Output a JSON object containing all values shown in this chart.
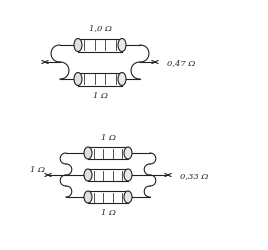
{
  "bg_color": "#ffffff",
  "line_color": "#222222",
  "text_color": "#222222",
  "top_label_top": "1,0 Ω",
  "top_label_bot": "1 Ω",
  "top_result": "0,47 Ω",
  "bot_label_top": "1 Ω",
  "bot_label_left": "1 Ω",
  "bot_label_bot": "1 Ω",
  "bot_result": "0,33 Ω",
  "figsize": [
    2.68,
    2.51
  ],
  "dpi": 100
}
